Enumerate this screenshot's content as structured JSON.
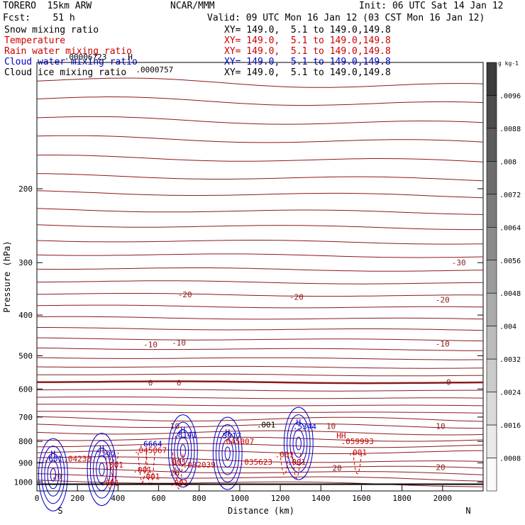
{
  "header": {
    "model": "TORERO  15km ARW",
    "center": "NCAR/MMM",
    "init": "Init: 06 UTC Sat 14 Jan 12",
    "fcst": "Fcst:    51 h",
    "valid": "Valid: 09 UTC Mon 16 Jan 12 (03 CST Mon 16 Jan 12)"
  },
  "fields": [
    {
      "name": "Snow mixing ratio",
      "xy": "XY= 149.0,  5.1 to 149.0,149.8",
      "color": "#000000"
    },
    {
      "name": "Temperature",
      "xy": "XY= 149.0,  5.1 to 149.0,149.8",
      "color": "#cc0000"
    },
    {
      "name": "Rain water mixing ratio",
      "xy": "XY= 149.0,  5.1 to 149.0,149.8",
      "color": "#cc0000"
    },
    {
      "name": "Cloud water mixing ratio",
      "xy": "XY= 149.0,  5.1 to 149.0,149.8",
      "color": "#0000cc"
    },
    {
      "name": "Cloud ice mixing ratio",
      "xy": "XY= 149.0,  5.1 to 149.0,149.8",
      "color": "#000000"
    }
  ],
  "chart_data": {
    "type": "cross-section contour",
    "xlabel": "Distance (km)",
    "ylabel": "Pressure (hPa)",
    "xlim": [
      0,
      2200
    ],
    "ylim": [
      1050,
      100
    ],
    "y_scale": "log",
    "x_ticks": [
      0,
      200,
      400,
      600,
      800,
      1000,
      1200,
      1400,
      1600,
      1800,
      2000
    ],
    "y_ticks": [
      200,
      300,
      400,
      500,
      600,
      700,
      800,
      900,
      1000
    ],
    "x_end_labels": {
      "left": "S",
      "right": "N"
    },
    "colorbar": {
      "unit": "g kg-1",
      "ticks": [
        ".0096",
        ".0088",
        ".008",
        ".0072",
        ".0064",
        ".0056",
        ".0048",
        ".004",
        ".0032",
        ".0024",
        ".0016",
        ".0008"
      ]
    },
    "temperature_contours": [
      {
        "label": "-30",
        "label_points": [
          [
            2080,
            300
          ]
        ]
      },
      {
        "label": "-20",
        "label_points": [
          [
            730,
            357
          ],
          [
            1280,
            362
          ],
          [
            2000,
            368
          ]
        ]
      },
      {
        "label": "-10",
        "label_points": [
          [
            560,
            470
          ],
          [
            700,
            465
          ],
          [
            2000,
            468
          ]
        ]
      },
      {
        "label": "0",
        "label_points": [
          [
            560,
            580
          ],
          [
            700,
            580
          ],
          [
            2030,
            578
          ]
        ]
      },
      {
        "label": "10",
        "label_points": [
          [
            680,
            735
          ],
          [
            1450,
            735
          ],
          [
            1990,
            735
          ]
        ]
      },
      {
        "label": "20",
        "label_points": [
          [
            100,
            970
          ],
          [
            680,
            950
          ],
          [
            1480,
            925
          ],
          [
            1990,
            922
          ]
        ]
      }
    ],
    "cloud_water_maxima": [
      {
        "label": "H",
        "x": 80,
        "p": 855
      },
      {
        "label": ".601",
        "x": 80,
        "p": 880
      },
      {
        "label": "H",
        "x": 320,
        "p": 830
      },
      {
        "label": ".7192",
        "x": 330,
        "p": 860
      },
      {
        "label": ".6664",
        "x": 560,
        "p": 810
      },
      {
        "label": "H",
        "x": 720,
        "p": 750
      },
      {
        "label": ".8141",
        "x": 730,
        "p": 770
      },
      {
        "label": "H",
        "x": 940,
        "p": 760
      },
      {
        "label": ".5917",
        "x": 950,
        "p": 775
      },
      {
        "label": "H",
        "x": 1290,
        "p": 720
      },
      {
        "label": ".5344",
        "x": 1320,
        "p": 737
      }
    ],
    "rain_water_maxima": [
      {
        "label": ".04238",
        "x": 200,
        "p": 880
      },
      {
        "label": ".045067",
        "x": 560,
        "p": 840
      },
      {
        "label": ".045007",
        "x": 990,
        "p": 800
      },
      {
        "label": ".035623",
        "x": 1080,
        "p": 895
      },
      {
        "label": ".032039",
        "x": 800,
        "p": 910
      },
      {
        "label": "HH",
        "x": 1500,
        "p": 775
      },
      {
        "label": ".059993",
        "x": 1580,
        "p": 800
      }
    ],
    "rain_water_contour_labels": [
      {
        "label": ".001",
        "x": 380,
        "p": 910
      },
      {
        "label": ".001",
        "x": 520,
        "p": 935
      },
      {
        "label": ".001",
        "x": 560,
        "p": 970
      },
      {
        "label": ".001",
        "x": 360,
        "p": 1005
      },
      {
        "label": ".001",
        "x": 690,
        "p": 895
      },
      {
        "label": ".001",
        "x": 700,
        "p": 1005
      },
      {
        "label": ".001",
        "x": 1220,
        "p": 860
      },
      {
        "label": ".001",
        "x": 1280,
        "p": 895
      },
      {
        "label": ".001",
        "x": 1580,
        "p": 850
      }
    ],
    "cloud_ice_maxima": [
      {
        "label": ".00006723",
        "x": 240,
        "p": 97
      },
      {
        "label": "H",
        "x": 460,
        "p": 97
      },
      {
        "label": ".0000757",
        "x": 580,
        "p": 104
      }
    ],
    "snow_contour_labels": [
      {
        "label": ".001",
        "x": 1130,
        "p": 730
      }
    ]
  }
}
